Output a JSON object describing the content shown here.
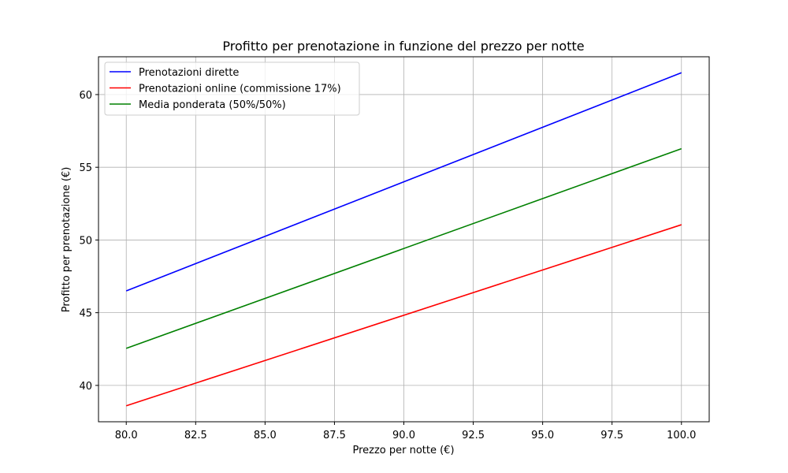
{
  "chart_data": {
    "type": "line",
    "title": "Profitto per prenotazione in funzione del prezzo per notte",
    "xlabel": "Prezzo per notte (€)",
    "ylabel": "Profitto per prenotazione (€)",
    "xlim": [
      79,
      101
    ],
    "ylim": [
      37.5,
      62.6
    ],
    "x_ticks": [
      80,
      82.5,
      85,
      87.5,
      90,
      92.5,
      95,
      97.5,
      100
    ],
    "x_tick_labels": [
      "80.0",
      "82.5",
      "85.0",
      "87.5",
      "90.0",
      "92.5",
      "95.0",
      "97.5",
      "100.0"
    ],
    "y_ticks": [
      40,
      45,
      50,
      55,
      60
    ],
    "y_tick_labels": [
      "40",
      "45",
      "50",
      "55",
      "60"
    ],
    "grid": true,
    "legend_position": "upper-left",
    "x": [
      80,
      100
    ],
    "series": [
      {
        "name": "Prenotazioni dirette",
        "color": "#0000ff",
        "values": [
          46.5,
          61.5
        ]
      },
      {
        "name": "Prenotazioni online (commissione 17%)",
        "color": "#ff0000",
        "values": [
          38.6,
          51.05
        ]
      },
      {
        "name": "Media ponderata (50%/50%)",
        "color": "#008000",
        "values": [
          42.55,
          56.28
        ]
      }
    ]
  }
}
